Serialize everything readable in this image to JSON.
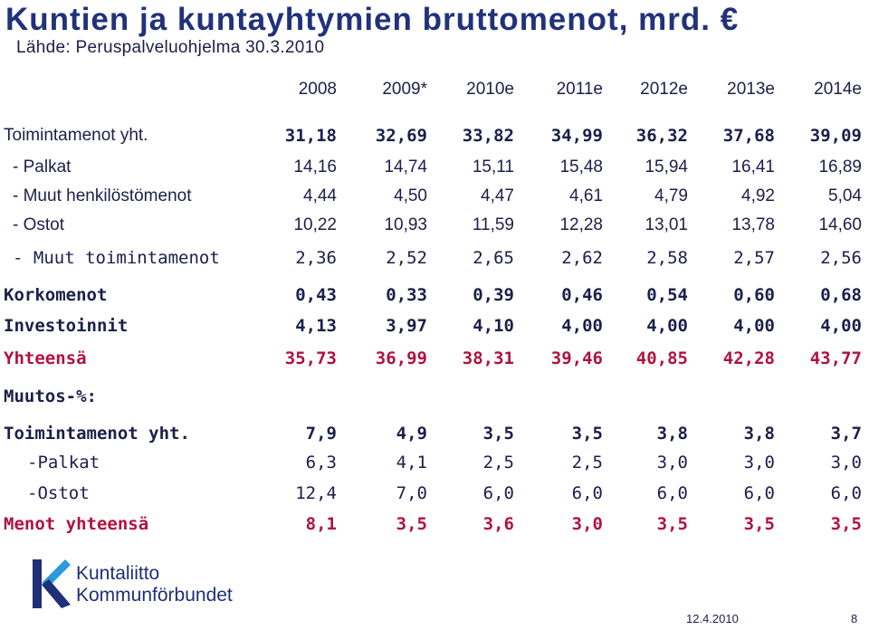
{
  "title": "Kuntien ja kuntayhtymien bruttomenot, mrd. €",
  "source": "Lähde: Peruspalveluohjelma 30.3.2010",
  "years": [
    "2008",
    "2009*",
    "2010e",
    "2011e",
    "2012e",
    "2013e",
    "2014e"
  ],
  "rows": [
    {
      "label": "Toimintamenot yht.",
      "values": [
        "31,18",
        "32,69",
        "33,82",
        "34,99",
        "36,32",
        "37,68",
        "39,09"
      ]
    },
    {
      "label": "- Palkat",
      "values": [
        "14,16",
        "14,74",
        "15,11",
        "15,48",
        "15,94",
        "16,41",
        "16,89"
      ]
    },
    {
      "label": "- Muut henkilöstömenot",
      "values": [
        "4,44",
        "4,50",
        "4,47",
        "4,61",
        "4,79",
        "4,92",
        "5,04"
      ]
    },
    {
      "label": "- Ostot",
      "values": [
        "10,22",
        "10,93",
        "11,59",
        "12,28",
        "13,01",
        "13,78",
        "14,60"
      ]
    },
    {
      "label": "- Muut toimintamenot",
      "values": [
        "2,36",
        "2,52",
        "2,65",
        "2,62",
        "2,58",
        "2,57",
        "2,56"
      ]
    },
    {
      "label": "Korkomenot",
      "values": [
        "0,43",
        "0,33",
        "0,39",
        "0,46",
        "0,54",
        "0,60",
        "0,68"
      ]
    },
    {
      "label": "Investoinnit",
      "values": [
        "4,13",
        "3,97",
        "4,10",
        "4,00",
        "4,00",
        "4,00",
        "4,00"
      ]
    },
    {
      "label": "Yhteensä",
      "values": [
        "35,73",
        "36,99",
        "38,31",
        "39,46",
        "40,85",
        "42,28",
        "43,77"
      ]
    }
  ],
  "change_heading": "Muutos-%:",
  "change_rows": [
    {
      "label": "Toimintamenot yht.",
      "values": [
        "7,9",
        "4,9",
        "3,5",
        "3,5",
        "3,8",
        "3,8",
        "3,7"
      ]
    },
    {
      "label": "-Palkat",
      "values": [
        "6,3",
        "4,1",
        "2,5",
        "2,5",
        "3,0",
        "3,0",
        "3,0"
      ]
    },
    {
      "label": "-Ostot",
      "values": [
        "12,4",
        "7,0",
        "6,0",
        "6,0",
        "6,0",
        "6,0",
        "6,0"
      ]
    },
    {
      "label": "Menot yhteensä",
      "values": [
        "8,1",
        "3,5",
        "3,6",
        "3,0",
        "3,5",
        "3,5",
        "3,5"
      ]
    }
  ],
  "logo": {
    "line1": "Kuntaliitto",
    "line2": "Kommunförbundet"
  },
  "footer": {
    "date": "12.4.2010",
    "page": "8"
  },
  "colors": {
    "title": "#21327a",
    "text": "#1b1f4a",
    "total": "#b0123f"
  }
}
